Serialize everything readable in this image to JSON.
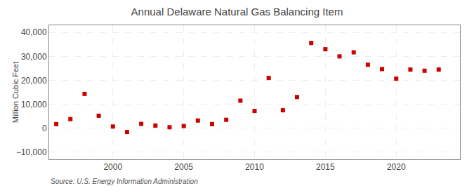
{
  "chart_data": {
    "type": "scatter",
    "title": "Annual Delaware Natural Gas Balancing Item",
    "ylabel": "Million Cubic Feet",
    "source": "Source: U.S. Energy Information Administration",
    "x": [
      1996,
      1997,
      1998,
      1999,
      2000,
      2001,
      2002,
      2003,
      2004,
      2005,
      2006,
      2007,
      2008,
      2009,
      2010,
      2011,
      2012,
      2013,
      2014,
      2015,
      2016,
      2017,
      2018,
      2019,
      2020,
      2021,
      2022,
      2023
    ],
    "values": [
      1700,
      3800,
      14300,
      5200,
      700,
      -1600,
      1800,
      1100,
      400,
      900,
      3200,
      1700,
      3500,
      11500,
      7200,
      21000,
      7500,
      13000,
      35600,
      33000,
      30000,
      31700,
      26500,
      24700,
      20700,
      24500,
      24000,
      24500
    ],
    "color": "#cc0000",
    "marker": "square",
    "xlim": [
      1995.5,
      2024.5
    ],
    "xticks": [
      2000,
      2005,
      2010,
      2015,
      2020
    ],
    "ylim": [
      -13000,
      43000
    ],
    "yticks": [
      {
        "value": -10000,
        "label": "−10,000"
      },
      0,
      {
        "value": 10000,
        "label": "10,000"
      },
      {
        "value": 20000,
        "label": "20,000"
      },
      {
        "value": 30000,
        "label": "30,000"
      },
      {
        "value": 40000,
        "label": "40,000"
      }
    ],
    "grid": true
  }
}
